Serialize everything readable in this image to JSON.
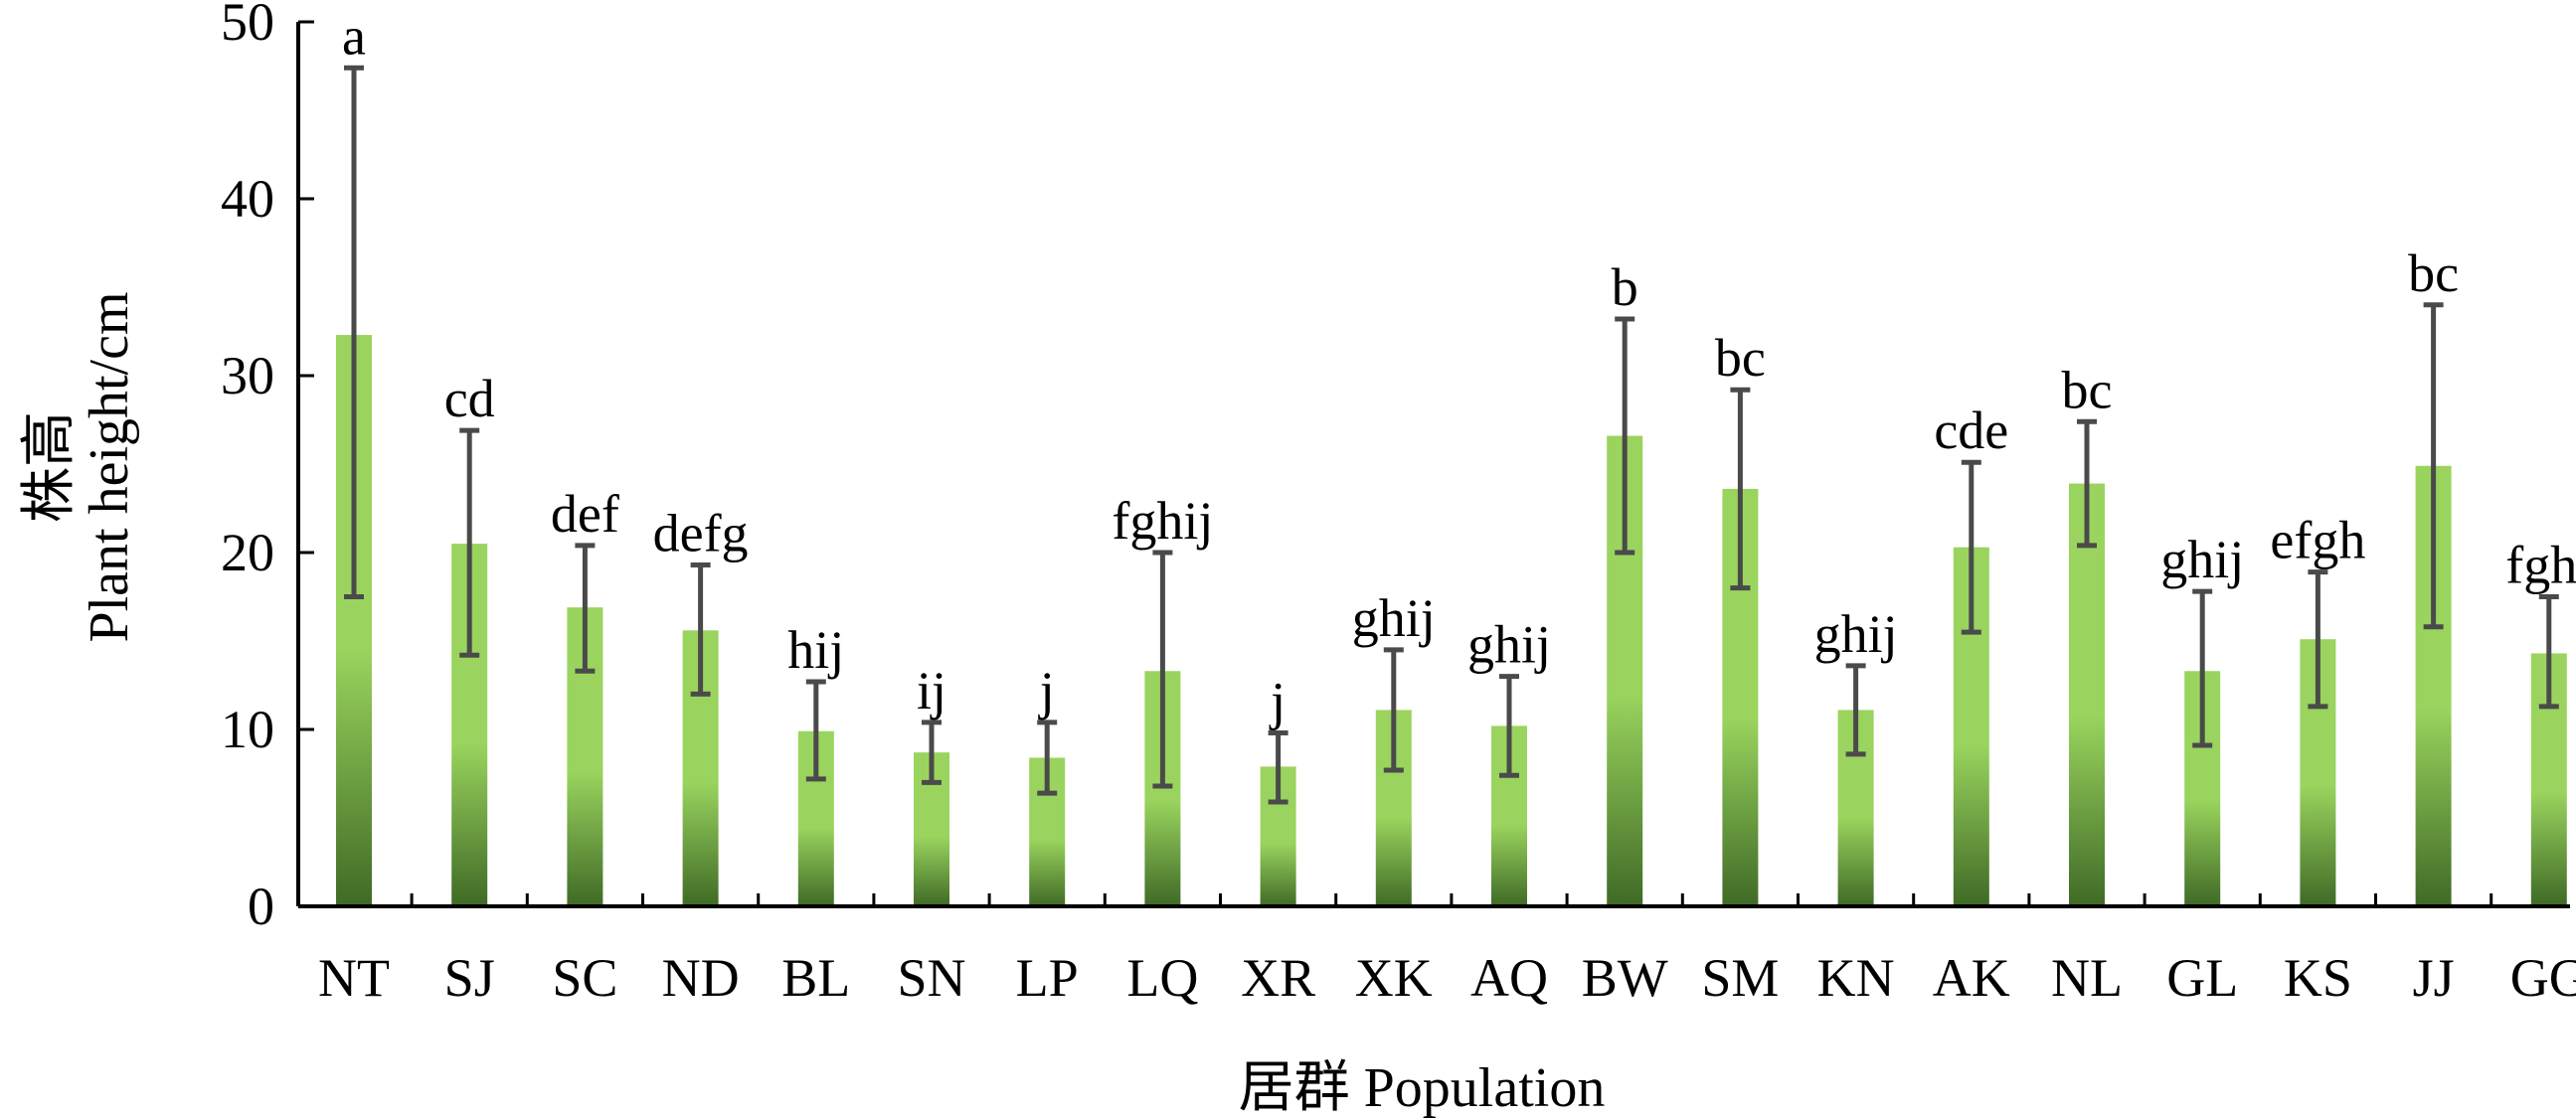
{
  "chart_data": {
    "type": "bar",
    "categories": [
      "NT",
      "SJ",
      "SC",
      "ND",
      "BL",
      "SN",
      "LP",
      "LQ",
      "XR",
      "XK",
      "AQ",
      "BW",
      "SM",
      "KN",
      "AK",
      "NL",
      "GL",
      "KS",
      "JJ",
      "GG"
    ],
    "values": [
      32.3,
      20.5,
      16.9,
      15.6,
      9.9,
      8.7,
      8.4,
      13.3,
      7.9,
      11.1,
      10.2,
      26.6,
      23.6,
      11.1,
      20.3,
      23.9,
      13.3,
      15.1,
      24.9,
      14.3
    ],
    "error_upper": [
      47.4,
      26.9,
      20.4,
      19.3,
      12.7,
      10.4,
      10.4,
      20.0,
      9.8,
      14.5,
      13.0,
      33.2,
      29.2,
      13.6,
      25.1,
      27.4,
      17.8,
      18.9,
      34.0,
      17.5
    ],
    "error_lower": [
      17.5,
      14.2,
      13.3,
      12.0,
      7.2,
      7.0,
      6.4,
      6.8,
      5.9,
      7.7,
      7.4,
      20.0,
      18.0,
      8.6,
      15.5,
      20.4,
      9.1,
      11.3,
      15.8,
      11.3
    ],
    "significance": [
      "a",
      "cd",
      "def",
      "defg",
      "hij",
      "ij",
      "j",
      "fghij",
      "j",
      "ghij",
      "ghij",
      "b",
      "bc",
      "ghij",
      "cde",
      "bc",
      "ghij",
      "efgh",
      "bc",
      "fghi"
    ],
    "ylim": [
      0,
      50
    ],
    "yticks": [
      "0",
      "10",
      "20",
      "30",
      "40",
      "50"
    ],
    "ylabel_cn": "株高",
    "ylabel_en": "Plant height/cm",
    "xlabel": "居群 Population",
    "grid": false,
    "colors": {
      "bar_top": "#9ad45e",
      "bar_bottom": "#3f6a26",
      "error_bar": "#4a4a4a",
      "axis": "#000000"
    }
  }
}
